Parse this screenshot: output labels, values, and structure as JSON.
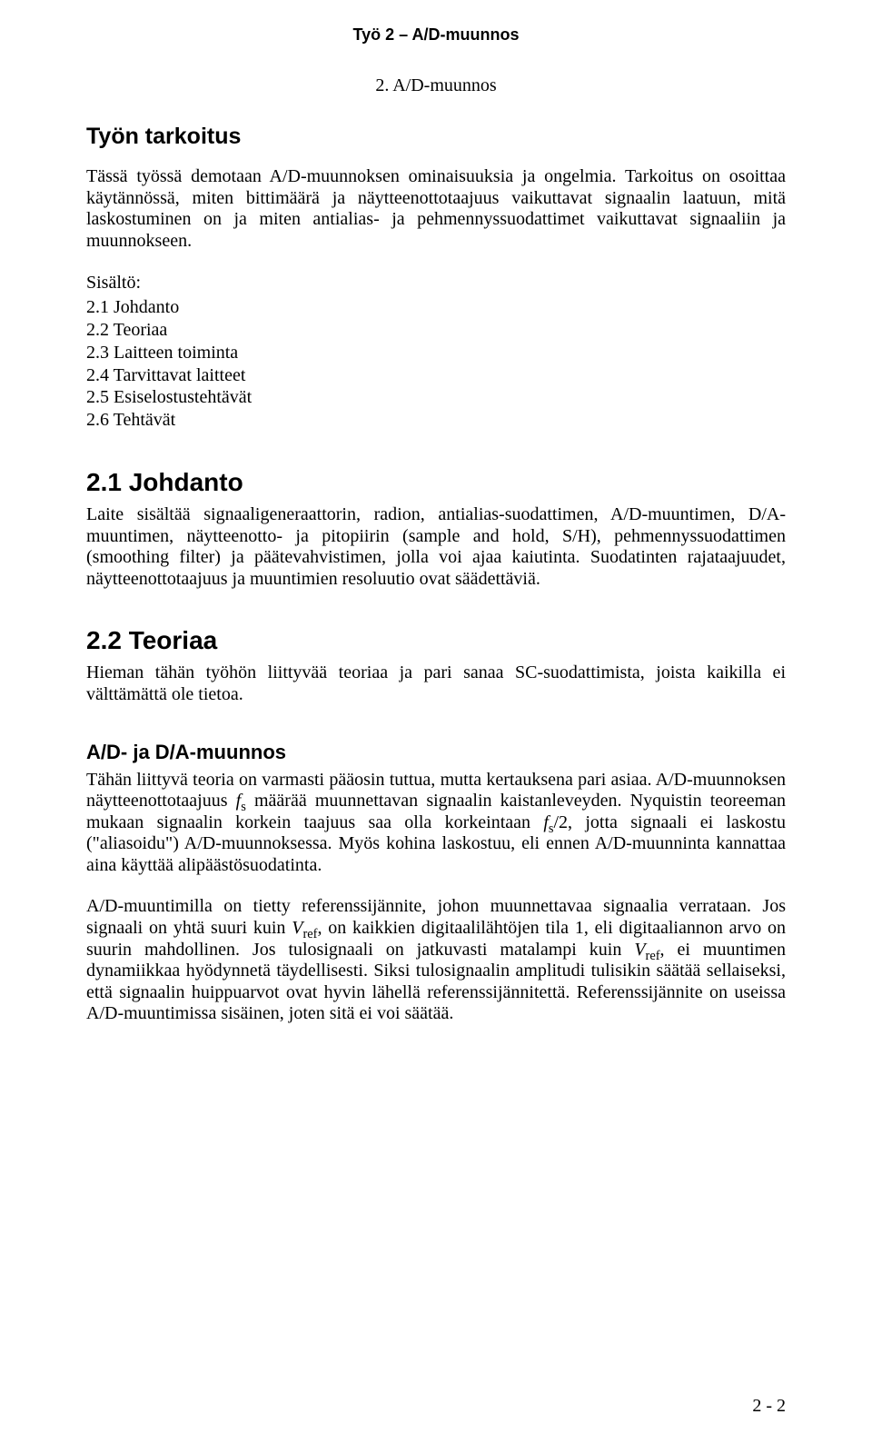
{
  "header": {
    "running": "Työ 2 – A/D-muunnos"
  },
  "title": "2. A/D-muunnos",
  "sections": {
    "tarkoitus": {
      "heading": "Työn tarkoitus",
      "p1a": "Tässä työssä demotaan A/D-muunnoksen ominaisuuksia ja ongelmia. Tarkoitus on osoittaa käytännössä, miten bittimäärä ja näytteenottotaajuus vaikuttavat signaalin laatuun, mitä laskostuminen on ja miten antialias- ja pehmennyssuodattimet vaikuttavat signaaliin ja muunnokseen."
    },
    "toc": {
      "label": "Sisältö:",
      "items": [
        "2.1 Johdanto",
        "2.2 Teoriaa",
        "2.3 Laitteen toiminta",
        "2.4 Tarvittavat laitteet",
        "2.5 Esiselostustehtävät",
        "2.6 Tehtävät"
      ]
    },
    "johdanto": {
      "heading": "2.1 Johdanto",
      "p": "Laite sisältää signaaligeneraattorin, radion, antialias-suodattimen, A/D-muuntimen, D/A-muuntimen, näytteenotto- ja pitopiirin (sample and hold, S/H), pehmennyssuodattimen (smoothing filter) ja päätevahvistimen, jolla voi ajaa kaiutinta. Suodatinten rajataajuudet, näytteenottotaajuus ja muuntimien resoluutio ovat säädettäviä."
    },
    "teoriaa": {
      "heading": "2.2 Teoriaa",
      "p": "Hieman tähän työhön liittyvää teoriaa ja pari sanaa SC-suodattimista, joista kaikilla ei välttämättä ole tietoa."
    },
    "adda": {
      "heading": "A/D- ja D/A-muunnos",
      "p1_pre": "Tähän liittyvä teoria on varmasti pääosin tuttua, mutta kertauksena pari asiaa. A/D-muunnoksen näytteenottotaajuus ",
      "p1_fs": "f",
      "p1_s": "s",
      "p1_mid": " määrää muunnettavan signaalin kaistanleveyden. Nyquistin teoreeman mukaan signaalin korkein taajuus saa olla korkeintaan ",
      "p1_fs2": "f",
      "p1_s2": "s",
      "p1_tail": "/2, jotta signaali ei laskostu (\"aliasoidu\") A/D-muunnoksessa. Myös kohina laskostuu, eli ennen A/D-muunninta kannattaa aina käyttää alipäästösuodatinta.",
      "p2_pre": "A/D-muuntimilla on tietty referenssijännite, johon muunnettavaa signaalia verrataan. Jos signaali on yhtä suuri kuin ",
      "p2_vref1": "V",
      "p2_ref1": "ref",
      "p2_mid1": ", on kaikkien digitaalilähtöjen tila 1, eli digitaaliannon arvo on suurin mahdollinen. Jos tulosignaali on jatkuvasti matalampi kuin ",
      "p2_vref2": "V",
      "p2_ref2": "ref",
      "p2_tail": ", ei muuntimen dynamiikkaa hyödynnetä täydellisesti. Siksi tulosignaalin amplitudi tulisikin säätää sellaiseksi, että signaalin huippuarvot ovat hyvin lähellä referenssijännitettä. Referenssijännite on useissa A/D-muuntimissa sisäinen, joten sitä ei voi säätää."
    }
  },
  "footer": {
    "pagenum": "2 - 2"
  }
}
